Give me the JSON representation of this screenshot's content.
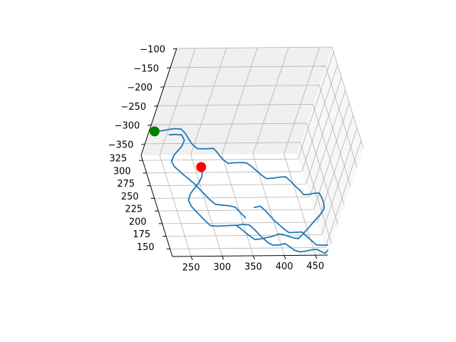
{
  "chart_data": {
    "type": "3d-line",
    "title": "",
    "xlabel": "",
    "ylabel": "",
    "zlabel": "",
    "grid": true,
    "colors": {
      "trace": "#1f77b4",
      "start_marker": "#008000",
      "end_marker": "#ff0000",
      "pane_back": "#f0f0f0",
      "pane_side": "#f7f7f7",
      "grid": "#b0b0b0"
    },
    "axes": {
      "x": {
        "range": [
          220,
          470
        ],
        "ticks": [
          250,
          300,
          350,
          400,
          450
        ],
        "tick_labels": [
          "250",
          "300",
          "350",
          "400",
          "450"
        ]
      },
      "y": {
        "range": [
          135,
          335
        ],
        "ticks": [
          150,
          175,
          200,
          225,
          250,
          275,
          300,
          325
        ],
        "tick_labels": [
          "150",
          "175",
          "200",
          "225",
          "250",
          "275",
          "300",
          "325"
        ]
      },
      "z": {
        "range": [
          -380,
          -100
        ],
        "ticks": [
          -350,
          -300,
          -250,
          -200,
          -150,
          -100
        ],
        "tick_labels": [
          "−350",
          "−300",
          "−250",
          "−200",
          "−150",
          "−100"
        ]
      }
    },
    "markers": [
      {
        "name": "start",
        "color": "#008000",
        "x": 222,
        "y": 322,
        "z": -300
      },
      {
        "name": "end",
        "color": "#ff0000",
        "x": 285,
        "y": 262,
        "z": -315
      }
    ],
    "series": [
      {
        "color": "#1f77b4",
        "points": [
          [
            222,
            322,
            -300
          ],
          [
            232,
            320,
            -296
          ],
          [
            242,
            318,
            -290
          ],
          [
            250,
            315,
            -284
          ],
          [
            258,
            311,
            -280
          ],
          [
            264,
            306,
            -284
          ],
          [
            270,
            300,
            -292
          ],
          [
            276,
            296,
            -300
          ],
          [
            284,
            292,
            -306
          ],
          [
            292,
            288,
            -302
          ],
          [
            298,
            284,
            -296
          ],
          [
            304,
            280,
            -290
          ],
          [
            310,
            278,
            -296
          ],
          [
            316,
            276,
            -304
          ],
          [
            322,
            272,
            -310
          ],
          [
            330,
            268,
            -314
          ],
          [
            338,
            266,
            -310
          ],
          [
            346,
            262,
            -304
          ],
          [
            354,
            258,
            -300
          ],
          [
            362,
            254,
            -304
          ],
          [
            370,
            250,
            -310
          ],
          [
            378,
            246,
            -316
          ],
          [
            386,
            242,
            -320
          ],
          [
            394,
            238,
            -314
          ],
          [
            402,
            234,
            -306
          ],
          [
            410,
            230,
            -300
          ],
          [
            418,
            226,
            -306
          ],
          [
            426,
            222,
            -314
          ],
          [
            434,
            218,
            -320
          ],
          [
            440,
            214,
            -326
          ],
          [
            446,
            210,
            -320
          ],
          [
            452,
            206,
            -312
          ],
          [
            458,
            202,
            -306
          ],
          [
            462,
            198,
            -312
          ],
          [
            466,
            194,
            -320
          ],
          [
            468,
            190,
            -330
          ],
          [
            464,
            186,
            -338
          ],
          [
            458,
            182,
            -344
          ],
          [
            452,
            178,
            -350
          ],
          [
            446,
            174,
            -356
          ],
          [
            440,
            170,
            -362
          ],
          [
            434,
            166,
            -368
          ],
          [
            428,
            162,
            -372
          ],
          [
            420,
            160,
            -368
          ],
          [
            412,
            158,
            -362
          ],
          [
            404,
            156,
            -356
          ],
          [
            396,
            154,
            -350
          ],
          [
            388,
            152,
            -346
          ],
          [
            380,
            152,
            -352
          ],
          [
            372,
            154,
            -358
          ],
          [
            364,
            156,
            -364
          ],
          [
            356,
            158,
            -368
          ],
          [
            348,
            160,
            -362
          ],
          [
            340,
            162,
            -356
          ],
          [
            332,
            166,
            -350
          ],
          [
            324,
            170,
            -346
          ],
          [
            316,
            174,
            -352
          ],
          [
            308,
            178,
            -358
          ],
          [
            300,
            182,
            -364
          ],
          [
            292,
            186,
            -368
          ],
          [
            284,
            190,
            -362
          ],
          [
            276,
            196,
            -356
          ],
          [
            268,
            202,
            -350
          ],
          [
            262,
            208,
            -346
          ],
          [
            258,
            216,
            -340
          ],
          [
            262,
            224,
            -334
          ],
          [
            270,
            232,
            -330
          ],
          [
            278,
            240,
            -326
          ],
          [
            284,
            248,
            -322
          ],
          [
            286,
            256,
            -318
          ],
          [
            285,
            262,
            -315
          ]
        ]
      },
      {
        "color": "#1f77b4",
        "points": [
          [
            330,
            180,
            -360
          ],
          [
            338,
            176,
            -352
          ],
          [
            346,
            170,
            -346
          ],
          [
            354,
            166,
            -352
          ],
          [
            362,
            162,
            -360
          ],
          [
            370,
            160,
            -368
          ],
          [
            378,
            156,
            -374
          ],
          [
            386,
            154,
            -378
          ],
          [
            394,
            150,
            -372
          ],
          [
            402,
            148,
            -366
          ],
          [
            410,
            146,
            -372
          ],
          [
            418,
            144,
            -378
          ],
          [
            426,
            142,
            -380
          ],
          [
            434,
            140,
            -376
          ],
          [
            442,
            138,
            -370
          ],
          [
            450,
            136,
            -366
          ],
          [
            458,
            136,
            -372
          ],
          [
            466,
            137,
            -378
          ],
          [
            470,
            140,
            -374
          ]
        ]
      },
      {
        "color": "#1f77b4",
        "points": [
          [
            360,
            200,
            -340
          ],
          [
            368,
            198,
            -334
          ],
          [
            376,
            194,
            -340
          ],
          [
            384,
            190,
            -348
          ],
          [
            392,
            186,
            -356
          ],
          [
            400,
            182,
            -362
          ],
          [
            408,
            178,
            -368
          ],
          [
            416,
            174,
            -372
          ],
          [
            424,
            170,
            -366
          ],
          [
            432,
            166,
            -360
          ],
          [
            440,
            162,
            -366
          ],
          [
            448,
            158,
            -372
          ],
          [
            456,
            154,
            -378
          ],
          [
            464,
            150,
            -374
          ],
          [
            470,
            146,
            -368
          ]
        ]
      },
      {
        "color": "#1f77b4",
        "points": [
          [
            236,
            300,
            -280
          ],
          [
            244,
            296,
            -274
          ],
          [
            252,
            292,
            -270
          ],
          [
            256,
            286,
            -276
          ],
          [
            252,
            280,
            -284
          ],
          [
            246,
            276,
            -290
          ],
          [
            240,
            272,
            -296
          ],
          [
            236,
            266,
            -304
          ],
          [
            240,
            260,
            -310
          ],
          [
            248,
            256,
            -316
          ],
          [
            256,
            252,
            -322
          ],
          [
            264,
            246,
            -326
          ],
          [
            272,
            240,
            -330
          ],
          [
            280,
            234,
            -336
          ],
          [
            288,
            228,
            -342
          ],
          [
            296,
            222,
            -348
          ],
          [
            304,
            216,
            -352
          ],
          [
            312,
            210,
            -346
          ],
          [
            320,
            204,
            -340
          ],
          [
            328,
            198,
            -336
          ],
          [
            336,
            192,
            -342
          ],
          [
            344,
            186,
            -348
          ]
        ]
      }
    ]
  }
}
